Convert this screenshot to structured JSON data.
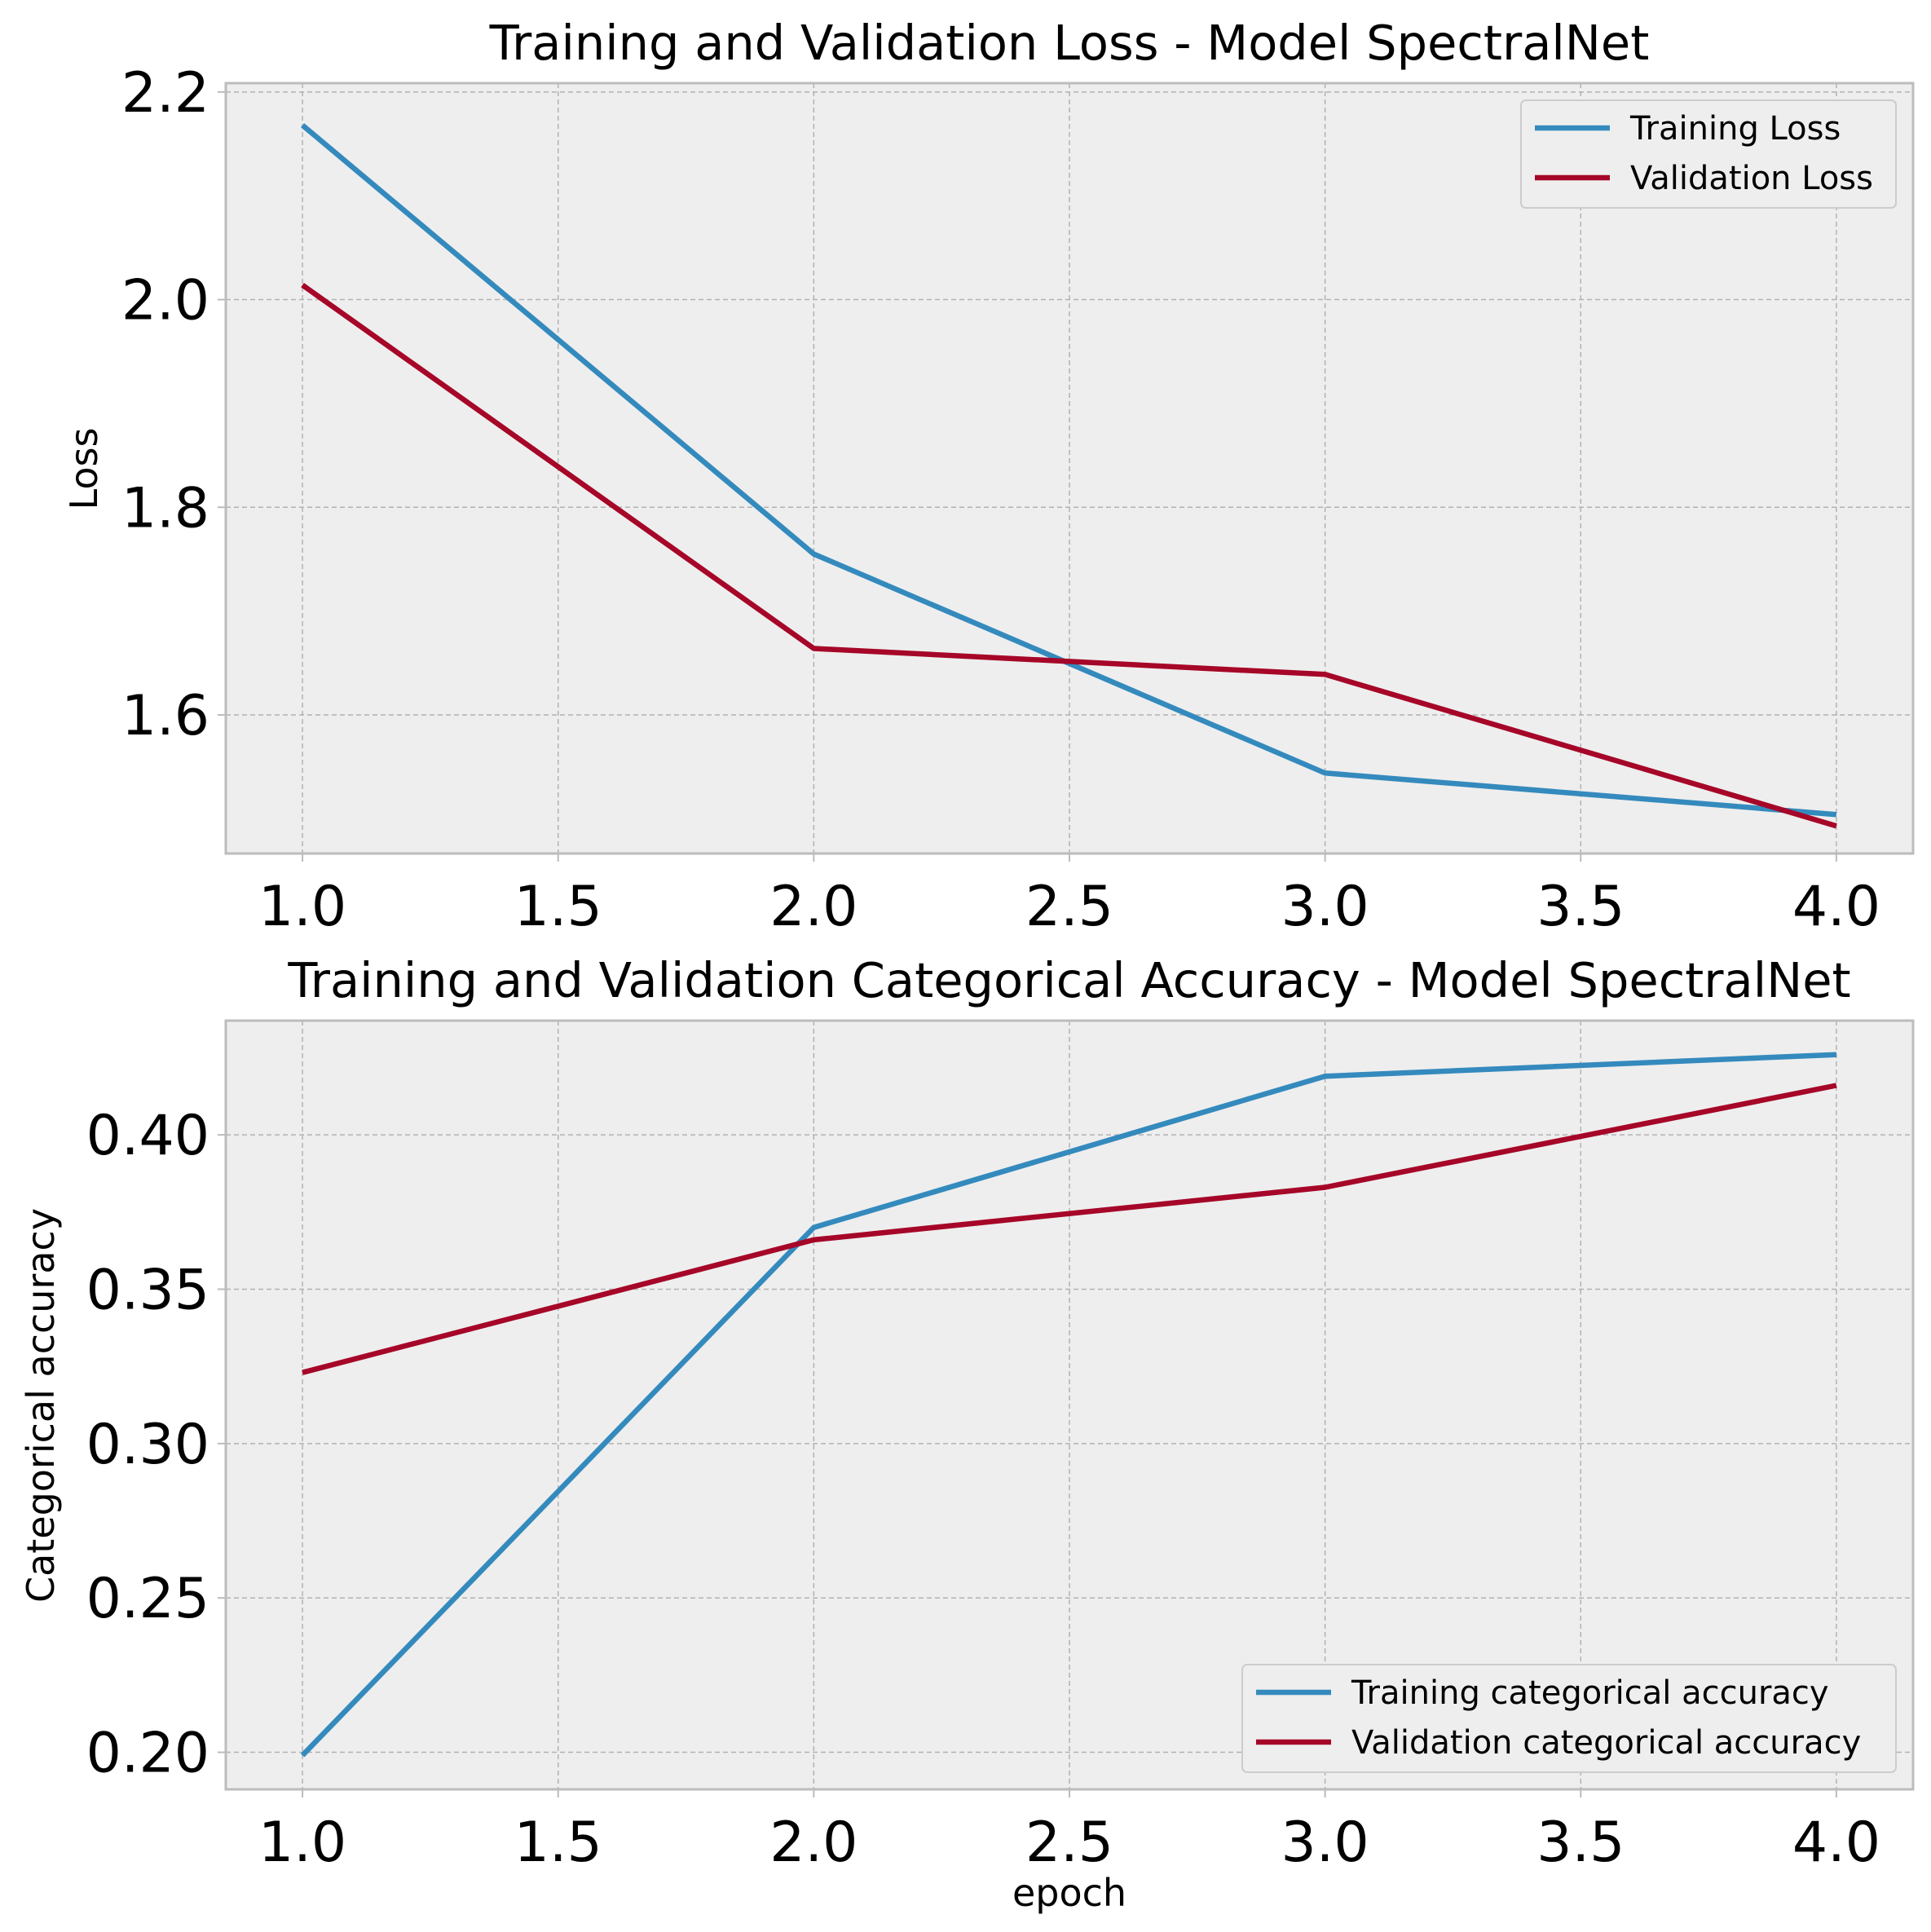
{
  "colors": {
    "training": "#348abd",
    "validation": "#a60628"
  },
  "chart_data": [
    {
      "type": "line",
      "title": "Training and Validation Loss - Model SpectralNet",
      "xlabel": "",
      "ylabel": "Loss",
      "x": [
        1.0,
        2.0,
        3.0,
        4.0
      ],
      "xlim": [
        0.85,
        4.15
      ],
      "ylim": [
        1.4665,
        2.2085
      ],
      "xticks": [
        1.0,
        1.5,
        2.0,
        2.5,
        3.0,
        3.5,
        4.0
      ],
      "xtick_labels": [
        "1.0",
        "1.5",
        "2.0",
        "2.5",
        "3.0",
        "3.5",
        "4.0"
      ],
      "yticks": [
        1.6,
        1.8,
        2.0,
        2.2
      ],
      "ytick_labels": [
        "1.6",
        "1.8",
        "2.0",
        "2.2"
      ],
      "grid": true,
      "legend_position": "top-right",
      "series": [
        {
          "name": "Training Loss",
          "color": "#348abd",
          "values": [
            2.168,
            1.755,
            1.544,
            1.504
          ]
        },
        {
          "name": "Validation Loss",
          "color": "#a60628",
          "values": [
            2.014,
            1.664,
            1.639,
            1.493
          ]
        }
      ]
    },
    {
      "type": "line",
      "title": "Training and Validation Categorical Accuracy - Model SpectralNet",
      "xlabel": "epoch",
      "ylabel": "Categorical accuracy",
      "x": [
        1.0,
        2.0,
        3.0,
        4.0
      ],
      "xlim": [
        0.85,
        4.15
      ],
      "ylim": [
        0.188,
        0.437
      ],
      "xticks": [
        1.0,
        1.5,
        2.0,
        2.5,
        3.0,
        3.5,
        4.0
      ],
      "xtick_labels": [
        "1.0",
        "1.5",
        "2.0",
        "2.5",
        "3.0",
        "3.5",
        "4.0"
      ],
      "yticks": [
        0.2,
        0.25,
        0.3,
        0.35,
        0.4
      ],
      "ytick_labels": [
        "0.20",
        "0.25",
        "0.30",
        "0.35",
        "0.40"
      ],
      "grid": true,
      "legend_position": "bottom-right",
      "series": [
        {
          "name": "Training categorical accuracy",
          "color": "#348abd",
          "values": [
            0.199,
            0.37,
            0.419,
            0.426
          ]
        },
        {
          "name": "Validation categorical accuracy",
          "color": "#a60628",
          "values": [
            0.323,
            0.366,
            0.383,
            0.416
          ]
        }
      ]
    }
  ]
}
